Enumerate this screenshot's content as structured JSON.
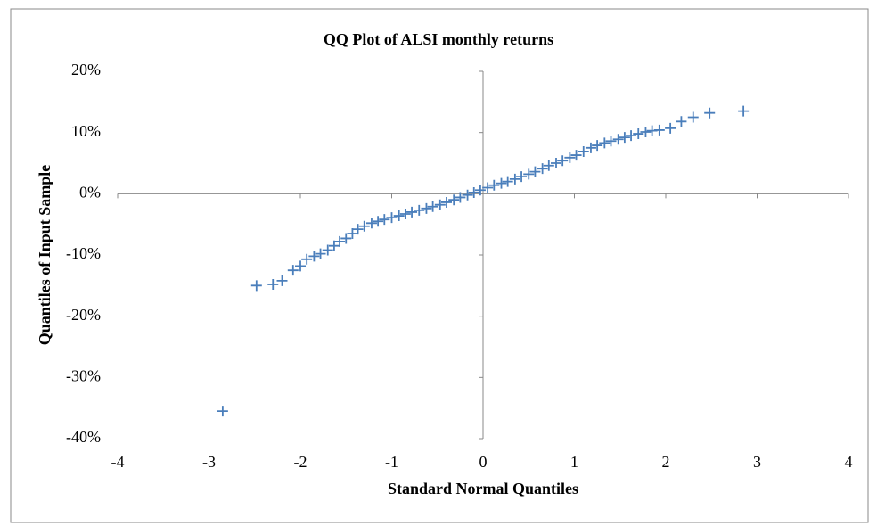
{
  "chart_data": {
    "type": "scatter",
    "title": "QQ Plot of ALSI monthly returns",
    "x_label": "Standard Normal Quantiles",
    "y_label": "Quantiles of Input Sample",
    "color": "#4a7ebb",
    "grid": false,
    "xlim": [
      -4,
      4
    ],
    "xticks": [
      -4,
      -3,
      -2,
      -1,
      0,
      1,
      2,
      3,
      4
    ],
    "ylim": [
      -40,
      20
    ],
    "yticks": [
      {
        "value": -40,
        "label": "-40%"
      },
      {
        "value": -30,
        "label": "-30%"
      },
      {
        "value": -20,
        "label": "-20%"
      },
      {
        "value": -10,
        "label": "-10%"
      },
      {
        "value": 0,
        "label": "0%"
      },
      {
        "value": 10,
        "label": "10%"
      },
      {
        "value": 20,
        "label": "20%"
      }
    ],
    "x": [
      -2.85,
      -2.48,
      -2.3,
      -2.2,
      -2.08,
      -2.0,
      -1.93,
      -1.85,
      -1.78,
      -1.7,
      -1.63,
      -1.57,
      -1.5,
      -1.43,
      -1.37,
      -1.3,
      -1.22,
      -1.15,
      -1.08,
      -1.0,
      -0.92,
      -0.85,
      -0.78,
      -0.7,
      -0.62,
      -0.55,
      -0.47,
      -0.4,
      -0.32,
      -0.25,
      -0.17,
      -0.1,
      -0.03,
      0.05,
      0.12,
      0.2,
      0.27,
      0.35,
      0.42,
      0.5,
      0.57,
      0.65,
      0.72,
      0.8,
      0.87,
      0.95,
      1.02,
      1.1,
      1.18,
      1.25,
      1.33,
      1.4,
      1.48,
      1.55,
      1.62,
      1.7,
      1.78,
      1.85,
      1.93,
      2.05,
      2.17,
      2.3,
      2.48,
      2.85
    ],
    "values": [
      -35.5,
      -15,
      -14.8,
      -14.2,
      -12.5,
      -11.8,
      -10.7,
      -10.2,
      -9.8,
      -9.2,
      -8.5,
      -7.8,
      -7.3,
      -6.5,
      -5.8,
      -5.3,
      -4.8,
      -4.5,
      -4.2,
      -3.9,
      -3.6,
      -3.3,
      -3.0,
      -2.7,
      -2.4,
      -2.1,
      -1.8,
      -1.4,
      -1.0,
      -0.6,
      -0.2,
      0.2,
      0.6,
      1.0,
      1.4,
      1.7,
      2.0,
      2.4,
      2.8,
      3.2,
      3.6,
      4.1,
      4.6,
      5.0,
      5.4,
      5.9,
      6.3,
      6.9,
      7.5,
      7.9,
      8.3,
      8.6,
      8.9,
      9.2,
      9.5,
      9.8,
      10.1,
      10.3,
      10.4,
      10.7,
      11.8,
      12.5,
      13.2,
      13.5
    ]
  }
}
